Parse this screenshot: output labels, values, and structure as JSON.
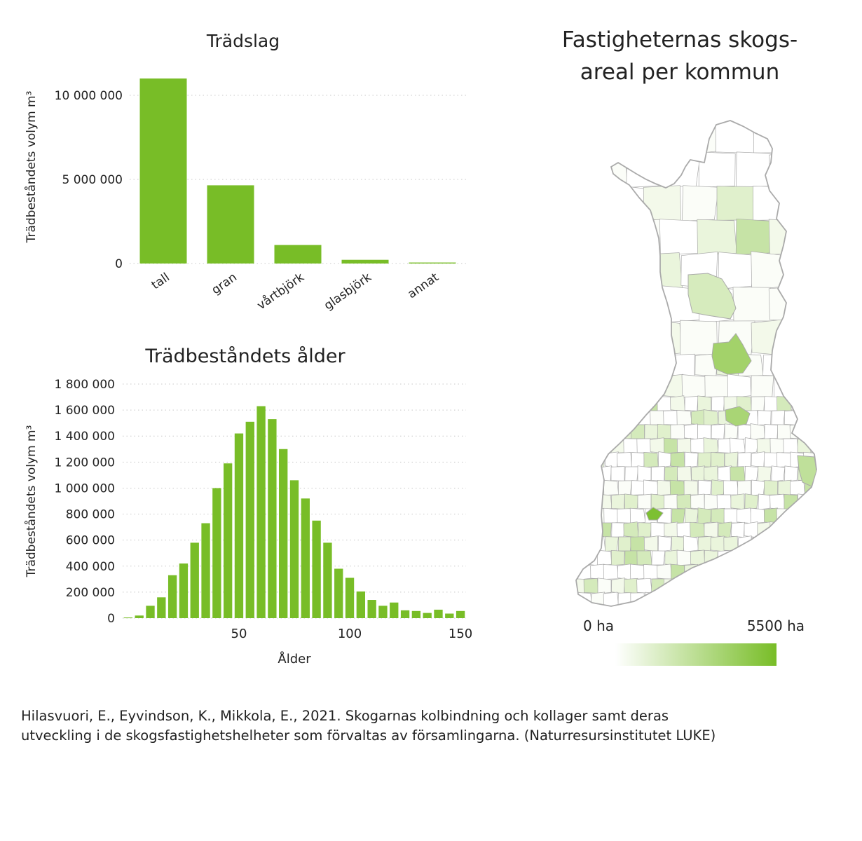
{
  "chart_data": [
    {
      "type": "bar",
      "title": "Trädslag",
      "ylabel": "Trädbeståndets volym m³",
      "xlabel": "",
      "categories": [
        "tall",
        "gran",
        "vårtbjörk",
        "glasbjörk",
        "annat"
      ],
      "values": [
        11000000,
        4650000,
        1100000,
        220000,
        60000
      ],
      "ylim": [
        0,
        11500000
      ],
      "yticks": [
        0,
        5000000,
        10000000
      ],
      "ytick_labels": [
        "0",
        "5 000 000",
        "10 000 000"
      ],
      "grid": true,
      "color": "#78bd27"
    },
    {
      "type": "bar",
      "title": "Trädbeståndets ålder",
      "ylabel": "Trädbeståndets volym m³",
      "xlabel": "Ålder",
      "x": [
        0,
        5,
        10,
        15,
        20,
        25,
        30,
        35,
        40,
        45,
        50,
        55,
        60,
        65,
        70,
        75,
        80,
        85,
        90,
        95,
        100,
        105,
        110,
        115,
        120,
        125,
        130,
        135,
        140,
        145,
        150
      ],
      "values": [
        5000,
        20000,
        95000,
        160000,
        330000,
        420000,
        580000,
        730000,
        1000000,
        1190000,
        1420000,
        1510000,
        1630000,
        1530000,
        1300000,
        1060000,
        920000,
        750000,
        580000,
        380000,
        310000,
        205000,
        140000,
        95000,
        120000,
        60000,
        55000,
        40000,
        65000,
        35000,
        55000
      ],
      "xlim": [
        -2.5,
        152.5
      ],
      "xticks": [
        50,
        100,
        150
      ],
      "xtick_labels": [
        "50",
        "100",
        "150"
      ],
      "ylim": [
        0,
        1800000
      ],
      "yticks": [
        0,
        200000,
        400000,
        600000,
        800000,
        1000000,
        1200000,
        1400000,
        1600000,
        1800000
      ],
      "ytick_labels": [
        "0",
        "200 000",
        "400 000",
        "600 000",
        "800 000",
        "1 000 000",
        "1 200 000",
        "1 400 000",
        "1 600 000",
        "1 800 000"
      ],
      "grid": true,
      "color": "#78bd27"
    }
  ],
  "map": {
    "title_line1": "Fastigheternas skogs-",
    "title_line2": "areal per kommun",
    "legend_min": "0 ha",
    "legend_max": "5500 ha",
    "color_low": "#ffffff",
    "color_high": "#78bd27",
    "border_color": "#aaaaaa"
  },
  "citation": {
    "line1": "Hilasvuori, E., Eyvindson, K., Mikkola, E., 2021. Skogarnas kolbindning och kollager samt deras",
    "line2": "utveckling i de skogsfastighetshelheter som förvaltas av församlingarna. (Naturresursinstitutet LUKE)"
  }
}
